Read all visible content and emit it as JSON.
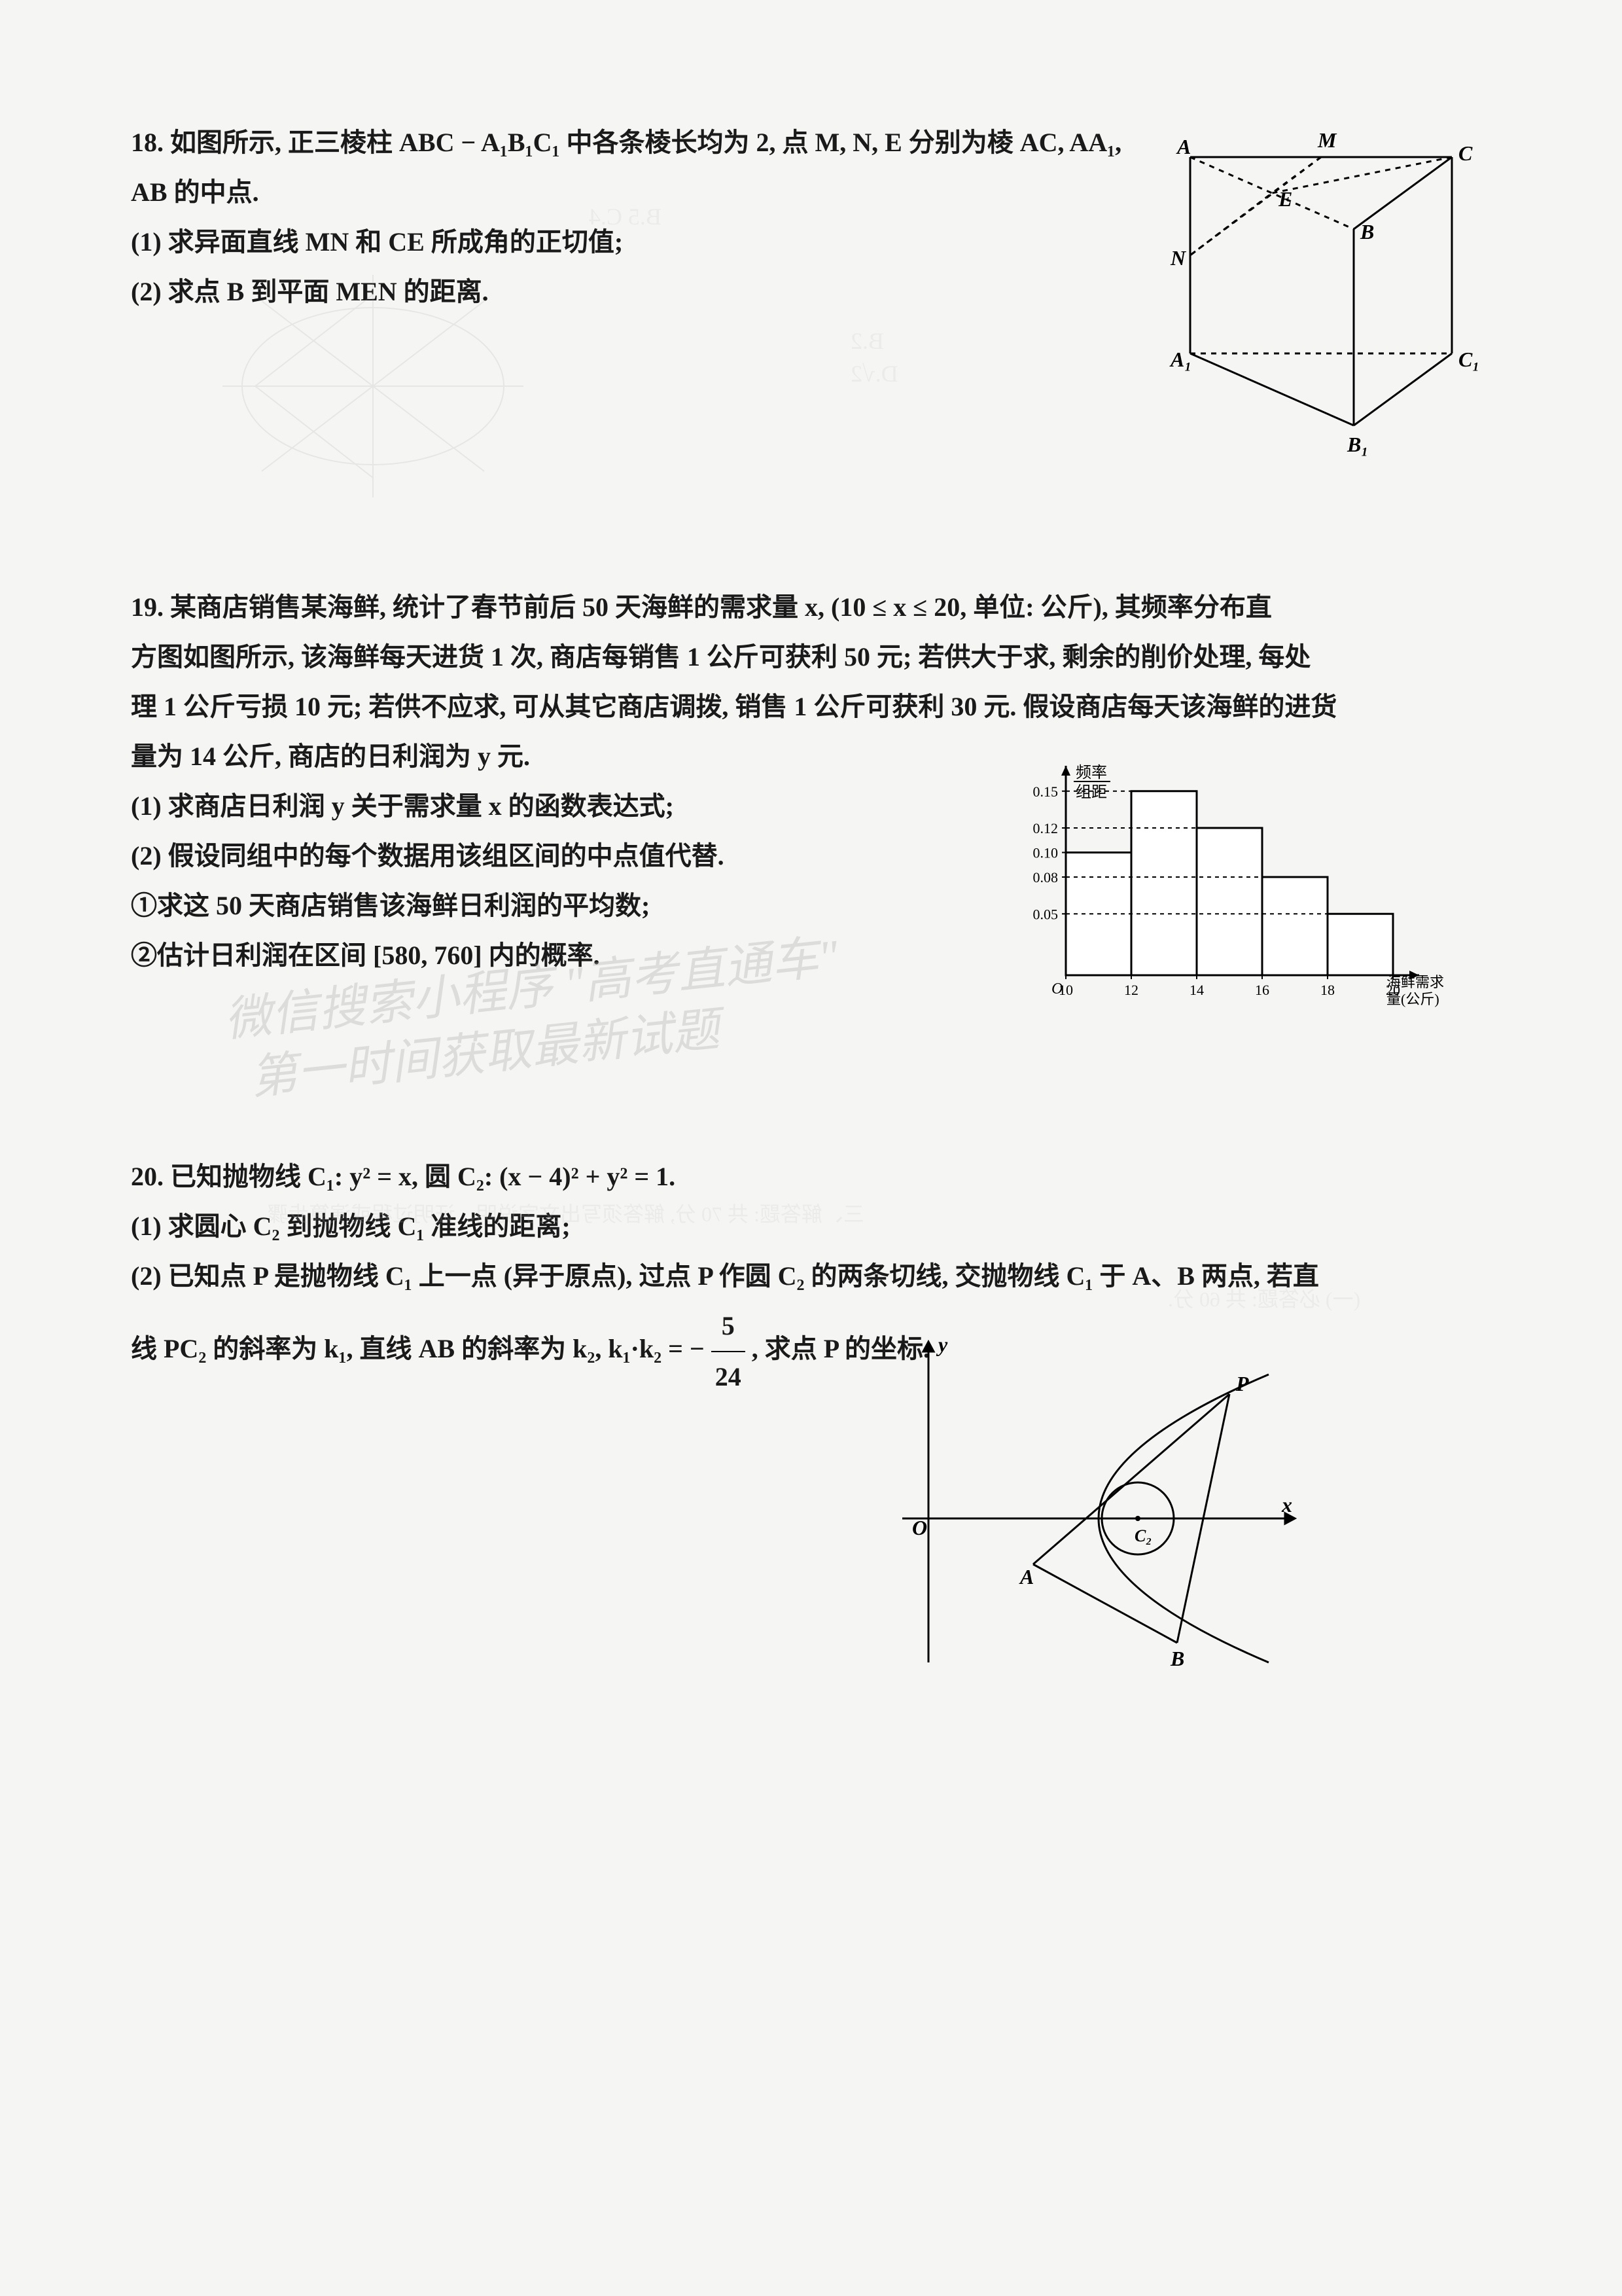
{
  "p18": {
    "stem": "18. 如图所示, 正三棱柱 ABC − A₁B₁C₁ 中各条棱长均为 2, 点 M, N, E 分别为棱 AC, AA₁, AB 的中点.",
    "q1": "(1) 求异面直线 MN 和 CE 所成角的正切值;",
    "q2": "(2) 求点 B 到平面 MEN 的距离.",
    "figure": {
      "type": "prism_diagram",
      "vertices": [
        "A",
        "B",
        "C",
        "A₁",
        "B₁",
        "C₁",
        "M",
        "N",
        "E"
      ],
      "stroke": "#000000",
      "dash": "6,6"
    }
  },
  "p19": {
    "stem_l1": "19. 某商店销售某海鲜, 统计了春节前后 50 天海鲜的需求量 x, (10 ≤ x ≤ 20, 单位: 公斤), 其频率分布直",
    "stem_l2": "方图如图所示, 该海鲜每天进货 1 次, 商店每销售 1 公斤可获利 50 元; 若供大于求, 剩余的削价处理, 每处",
    "stem_l3": "理 1 公斤亏损 10 元; 若供不应求, 可从其它商店调拨, 销售 1 公斤可获利 30 元. 假设商店每天该海鲜的进货",
    "stem_l4": "量为 14 公斤, 商店的日利润为 y 元.",
    "q1": "(1) 求商店日利润 y 关于需求量 x 的函数表达式;",
    "q2": "(2) 假设同组中的每个数据用该组区间的中点值代替.",
    "q2a": "①求这 50 天商店销售该海鲜日利润的平均数;",
    "q2b": "②估计日利润在区间 [580, 760] 内的概率.",
    "histogram": {
      "type": "histogram",
      "xlabel_l1": "海鲜需求",
      "xlabel_l2": "量(公斤)",
      "ylabel_l1": "频率",
      "ylabel_l2": "组距",
      "x_breaks": [
        10,
        12,
        14,
        16,
        18,
        20
      ],
      "y_ticks": [
        0.05,
        0.08,
        0.1,
        0.12,
        0.15
      ],
      "bars": [
        {
          "x0": 10,
          "x1": 12,
          "h": 0.1
        },
        {
          "x0": 12,
          "x1": 14,
          "h": 0.15
        },
        {
          "x0": 14,
          "x1": 16,
          "h": 0.12
        },
        {
          "x0": 16,
          "x1": 18,
          "h": 0.08
        },
        {
          "x0": 18,
          "x1": 20,
          "h": 0.05
        }
      ],
      "bar_fill": "#ffffff",
      "bar_stroke": "#000000",
      "axis_color": "#000000",
      "dash_color": "#000000"
    }
  },
  "p20": {
    "stem": "20. 已知抛物线 C₁: y² = x, 圆 C₂: (x − 4)² + y² = 1.",
    "q1": "(1) 求圆心 C₂ 到抛物线 C₁ 准线的距离;",
    "q2_l1": "(2) 已知点 P 是抛物线 C₁ 上一点 (异于原点), 过点 P 作圆 C₂ 的两条切线, 交抛物线 C₁ 于 A、B 两点, 若直",
    "q2_l2_pre": "线 PC₂ 的斜率为 k₁, 直线 AB 的斜率为 k₂, k₁·k₂ = −",
    "q2_frac_n": "5",
    "q2_frac_d": "24",
    "q2_l2_post": ", 求点 P 的坐标.",
    "figure": {
      "type": "parabola_circle",
      "labels": [
        "O",
        "x",
        "y",
        "P",
        "A",
        "B",
        "C₂"
      ],
      "stroke": "#000000"
    }
  },
  "watermarks": {
    "w1": "微信搜索小程序 \"高考直通车\"",
    "w2": "第一时间获取最新试题"
  },
  "ghost": {
    "g1": "B.5    C.4",
    "g2": "B.2",
    "g3": "D.√2",
    "g4": "(一) 必答题: 共 60 分.",
    "g5": "三、解答题: 共 70 分, 解答须写出文字说明、证明过程或演算步骤."
  },
  "colors": {
    "text": "#1a1a1a",
    "bg": "#f5f5f3",
    "ghost": "#bfbfbf",
    "watermark": "#b0b0b0"
  }
}
